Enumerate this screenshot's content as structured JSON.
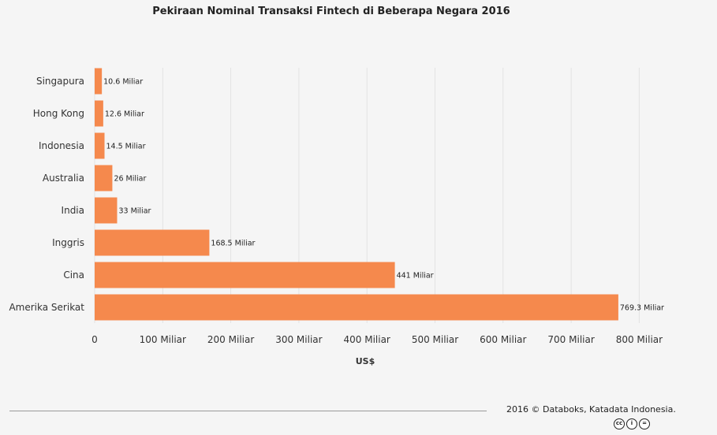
{
  "chart_data": {
    "type": "bar",
    "orientation": "horizontal",
    "title": "Pekiraan Nominal Transaksi Fintech di Beberapa Negara 2016",
    "xlabel": "US$",
    "ylabel": "",
    "xlim": [
      0,
      800
    ],
    "ticks": [
      0,
      100,
      200,
      300,
      400,
      500,
      600,
      700,
      800
    ],
    "tick_labels": [
      "0",
      "100 Miliar",
      "200 Miliar",
      "300 Miliar",
      "400 Miliar",
      "500 Miliar",
      "600 Miliar",
      "700 Miliar",
      "800 Miliar"
    ],
    "categories": [
      "Singapura",
      "Hong Kong",
      "Indonesia",
      "Australia",
      "India",
      "Inggris",
      "Cina",
      "Amerika Serikat"
    ],
    "values": [
      10.6,
      12.6,
      14.5,
      26,
      33,
      168.5,
      441,
      769.3
    ],
    "data_labels": [
      "10.6 Miliar",
      "12.6 Miliar",
      "14.5 Miliar",
      "26 Miliar",
      "33 Miliar",
      "168.5 Miliar",
      "441 Miliar",
      "769.3 Miliar"
    ],
    "bar_color": "#f5894d",
    "grid": true,
    "legend": "none"
  },
  "footer": {
    "source": "2016 © Databoks, Katadata Indonesia.",
    "license_icons": [
      "cc-icon",
      "by-icon",
      "nd-icon"
    ]
  }
}
